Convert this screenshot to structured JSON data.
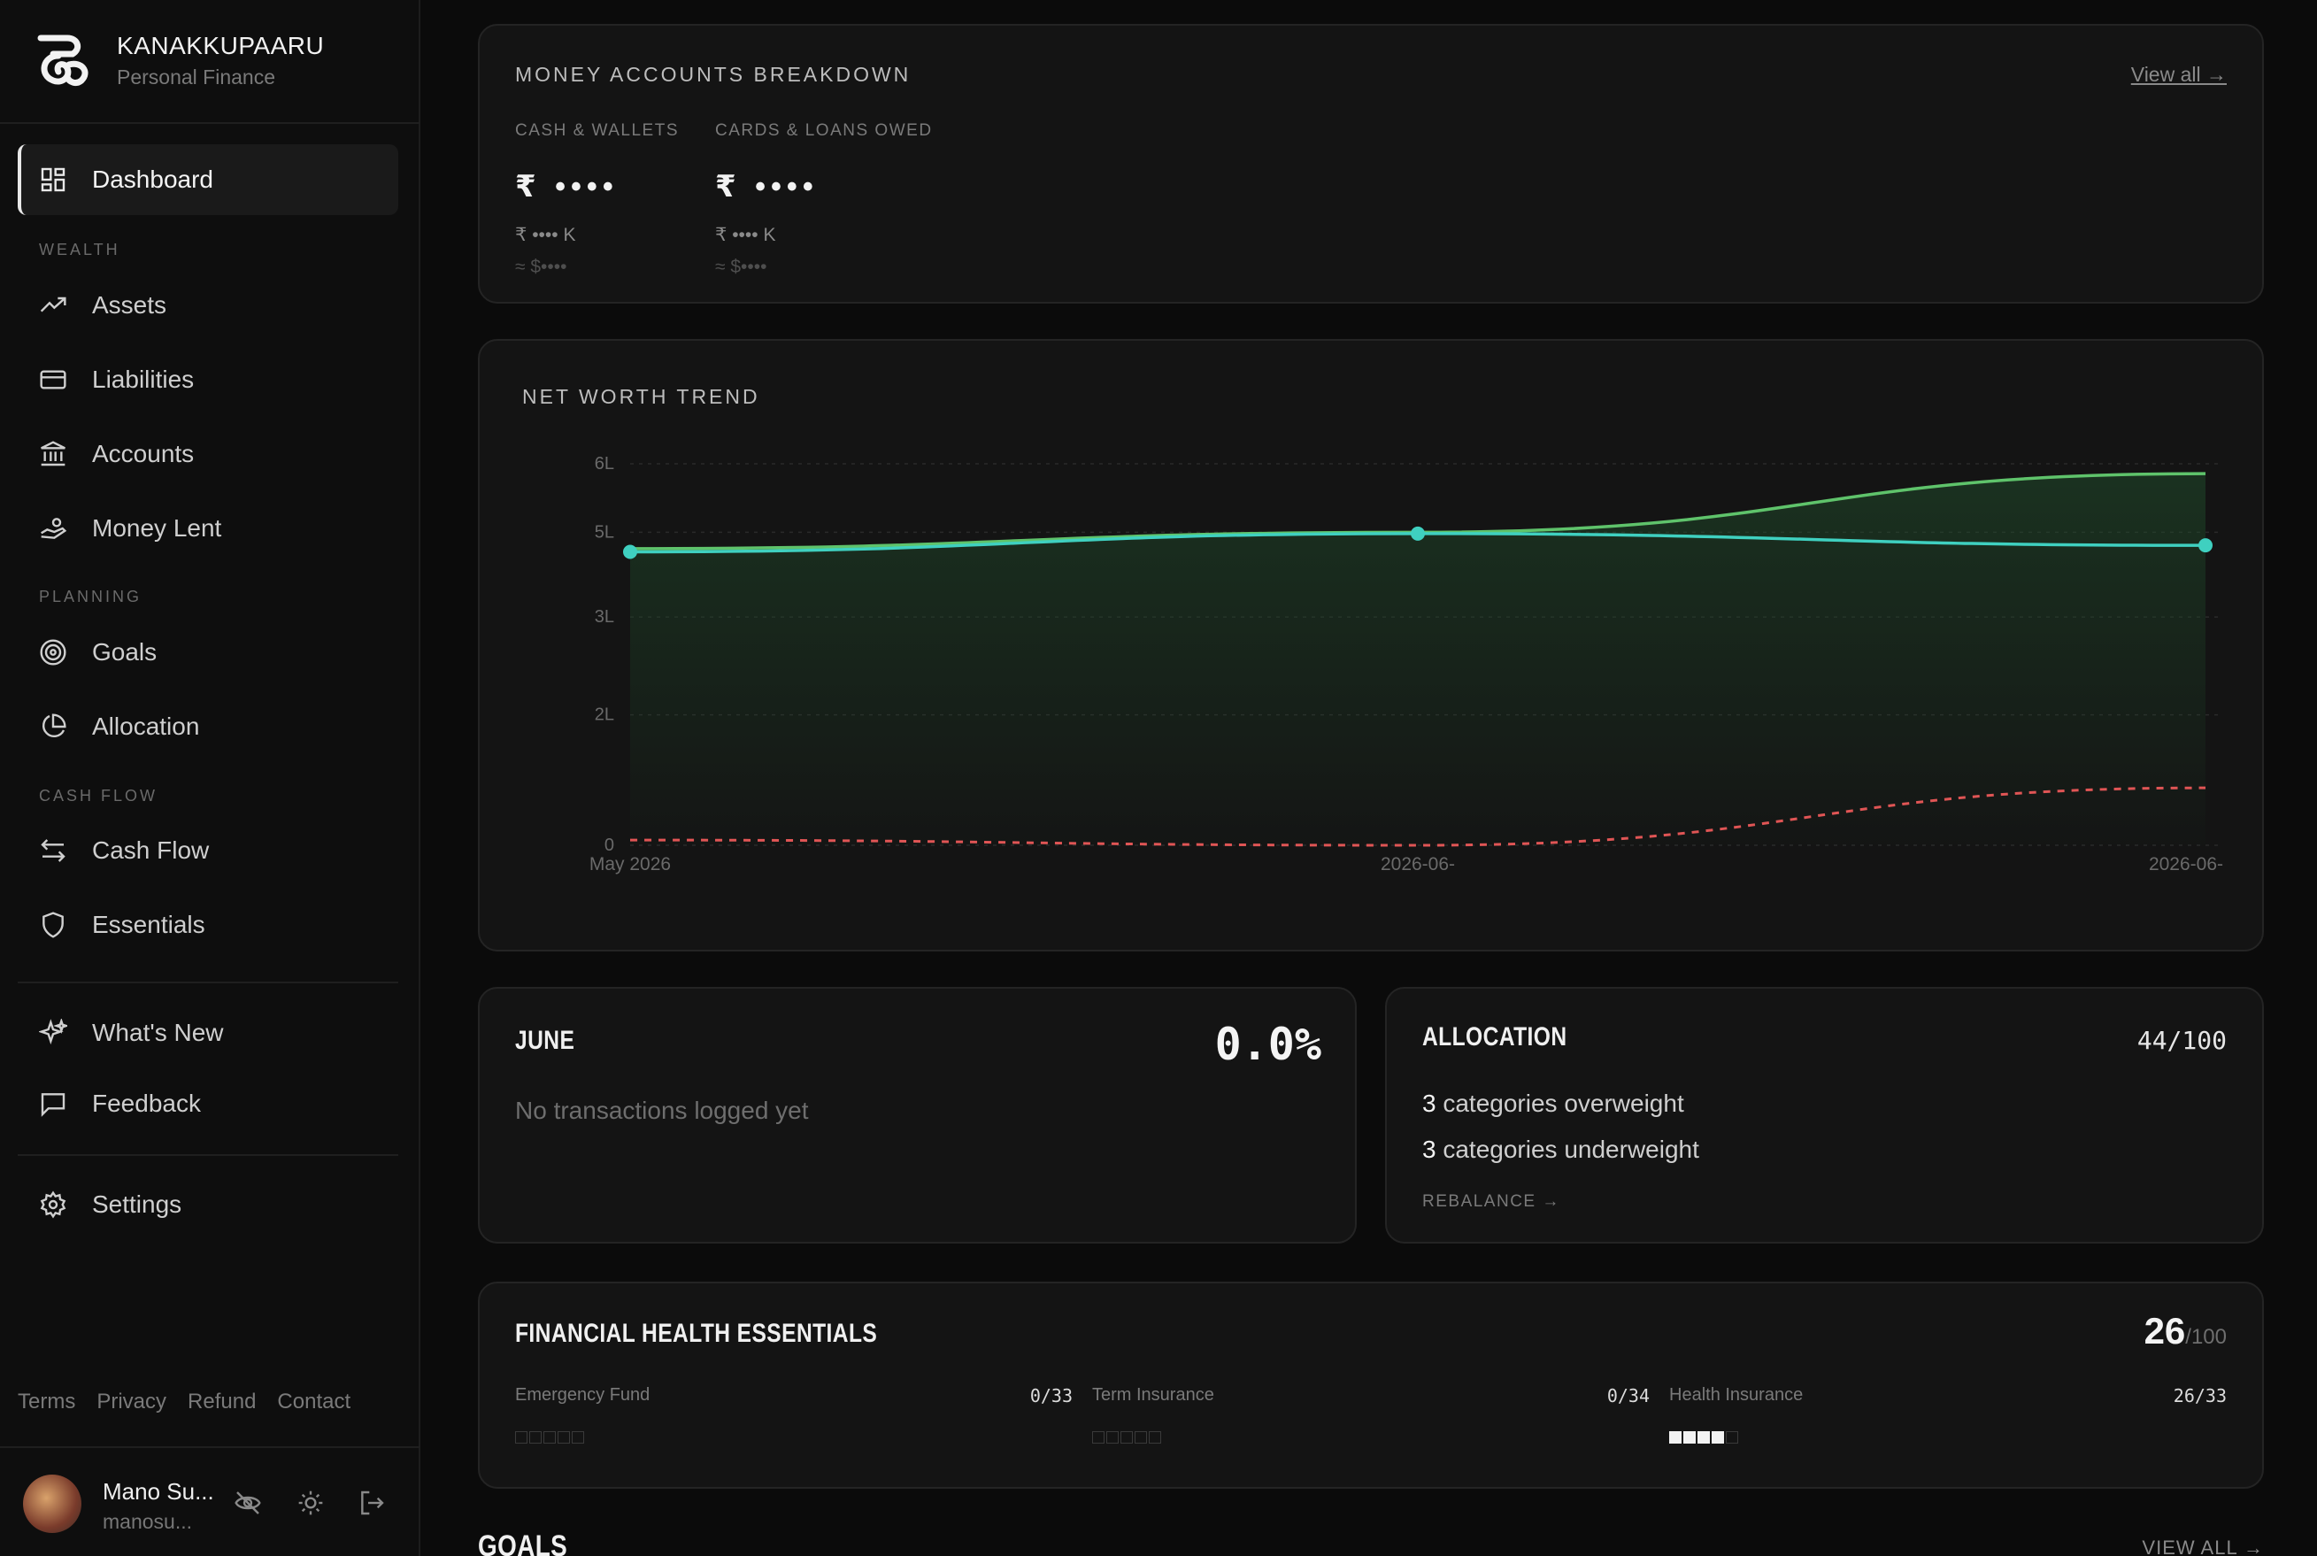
{
  "app": {
    "name": "KANAKKUPAARU",
    "subtitle": "Personal Finance"
  },
  "nav": {
    "dashboard": "Dashboard",
    "section_wealth": "WEALTH",
    "assets": "Assets",
    "liabilities": "Liabilities",
    "accounts": "Accounts",
    "money_lent": "Money Lent",
    "section_planning": "PLANNING",
    "goals": "Goals",
    "allocation": "Allocation",
    "section_cashflow": "CASH FLOW",
    "cash_flow": "Cash Flow",
    "essentials": "Essentials",
    "whats_new": "What's New",
    "feedback": "Feedback",
    "settings": "Settings"
  },
  "footer": {
    "terms": "Terms",
    "privacy": "Privacy",
    "refund": "Refund",
    "contact": "Contact"
  },
  "user": {
    "name": "Mano Su...",
    "email": "manosu..."
  },
  "accounts_breakdown": {
    "title": "MONEY ACCOUNTS BREAKDOWN",
    "view_all": "View all →",
    "cash": {
      "label": "CASH & WALLETS",
      "value": "₹ ••••",
      "short": "₹ •••• K",
      "usd": "≈ $••••"
    },
    "cards": {
      "label": "CARDS & LOANS OWED",
      "value": "₹ ••••",
      "short": "₹ •••• K",
      "usd": "≈ $••••"
    }
  },
  "net_worth": {
    "title": "NET WORTH TREND",
    "chart_data": {
      "type": "line",
      "x": [
        "May 2026",
        "2026-06-",
        "2026-06-"
      ],
      "y_ticks": [
        "0",
        "2L",
        "3L",
        "5L",
        "6L"
      ],
      "ylim": [
        0,
        6
      ],
      "series": [
        {
          "values": [
            4.55,
            4.8,
            5.7
          ],
          "color": "#5fc36b"
        },
        {
          "values": [
            4.5,
            4.78,
            4.6
          ],
          "color": "#3fd0c0"
        },
        {
          "values": [
            0.08,
            0.0,
            0.88
          ],
          "color": "#e05555"
        }
      ]
    }
  },
  "june": {
    "title": "JUNE",
    "value": "0.0%",
    "message": "No transactions logged yet"
  },
  "allocation": {
    "title": "ALLOCATION",
    "score": "44/100",
    "over_count": "3",
    "over_text": "categories overweight",
    "under_count": "3",
    "under_text": "categories underweight",
    "action": "REBALANCE →"
  },
  "health": {
    "title": "FINANCIAL HEALTH ESSENTIALS",
    "score": "26",
    "max": "/100",
    "items": [
      {
        "label": "Emergency Fund",
        "score": "0/33",
        "filled": 0
      },
      {
        "label": "Term Insurance",
        "score": "0/34",
        "filled": 0
      },
      {
        "label": "Health Insurance",
        "score": "26/33",
        "filled": 4
      }
    ]
  },
  "goals": {
    "title": "GOALS",
    "view_all": "VIEW ALL →"
  }
}
